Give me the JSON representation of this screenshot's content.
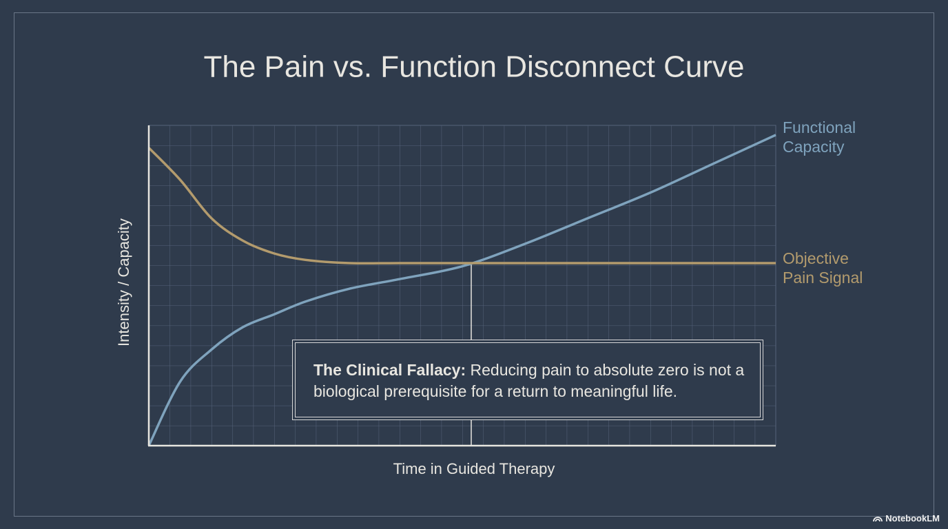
{
  "chart_data": {
    "type": "line",
    "title": "The Pain vs. Function Disconnect Curve",
    "x_label": "Time in Guided Therapy",
    "y_label": "Intensity / Capacity",
    "x": [
      0,
      5,
      10,
      15,
      20,
      25,
      32,
      40,
      50,
      60,
      70,
      80,
      90,
      100
    ],
    "xlim": [
      0,
      100
    ],
    "ylim": [
      0,
      100
    ],
    "grid": true,
    "series": [
      {
        "name": "Functional Capacity",
        "color": "#7fa3bd",
        "values": [
          0,
          20,
          30,
          37,
          41,
          45,
          49,
          52,
          56,
          63,
          71,
          79,
          88,
          97
        ]
      },
      {
        "name": "Objective Pain Signal",
        "color": "#b39b6d",
        "values": [
          93,
          83,
          71,
          64,
          60,
          58,
          57,
          57,
          57,
          57,
          57,
          57,
          57,
          57
        ]
      }
    ],
    "annotation": {
      "title": "The Clinical Fallacy:",
      "text": "Reducing pain to absolute zero is not a biological prerequisite for a return to meaningful life."
    }
  },
  "footer": {
    "brand": "NotebookLM"
  }
}
